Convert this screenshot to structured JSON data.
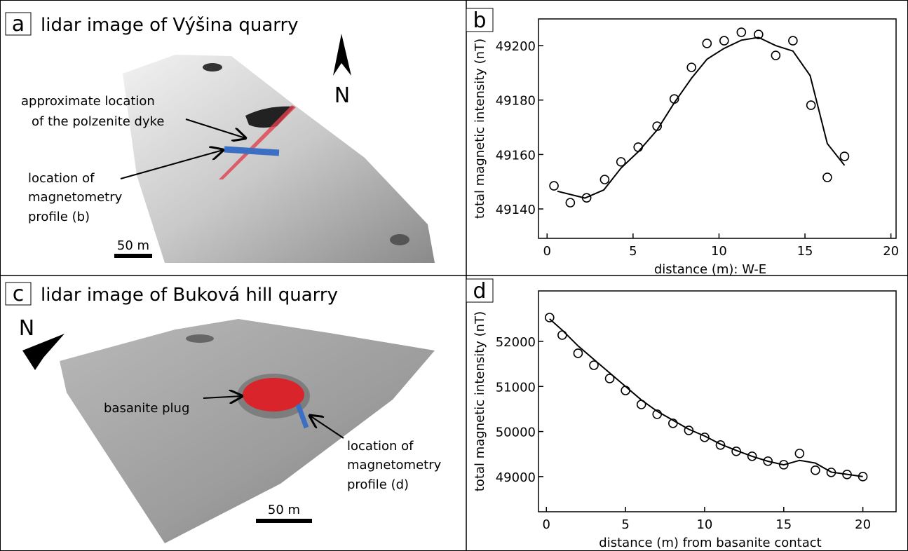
{
  "panels": [
    {
      "label": "a",
      "title": "lidar image of Výšina quarry",
      "north": "N",
      "scale": "50 m",
      "annotations": [
        [
          "approximate location",
          "of the polzenite dyke"
        ],
        [
          "location of",
          "magnetometry",
          "profile (b)"
        ]
      ]
    },
    {
      "label": "c",
      "title": "lidar image of Buková hill quarry",
      "north": "N",
      "scale": "50 m",
      "annotations": [
        [
          "basanite plug"
        ],
        [
          "location of",
          "magnetometry",
          "profile (d)"
        ]
      ]
    }
  ],
  "chart_data": [
    {
      "type": "scatter",
      "label": "b",
      "x_label": "distance (m): W-E",
      "y_label": "total magnetic intensity (nT)",
      "xlim": [
        -0.5,
        20.3
      ],
      "ylim": [
        49129.2,
        49209.8
      ],
      "xticks": [
        0,
        5,
        10,
        15,
        20
      ],
      "yticks": [
        49140,
        49160,
        49180,
        49200
      ],
      "series": [
        {
          "mode": "markers",
          "color": "#000000",
          "x": [
            0.4,
            1.35,
            2.3,
            3.35,
            4.3,
            5.3,
            6.4,
            7.4,
            8.4,
            9.3,
            10.3,
            11.3,
            12.3,
            13.3,
            14.3,
            15.35,
            16.3,
            17.3
          ],
          "values": [
            49148.5,
            49142.3,
            49144.1,
            49150.8,
            49157.3,
            49162.7,
            49170.4,
            49180.4,
            49192,
            49200.8,
            49201.8,
            49204.9,
            49204.1,
            49196.4,
            49201.8,
            49178.1,
            49151.6,
            49159.3
          ]
        },
        {
          "mode": "line",
          "color": "#000000",
          "x": [
            0.6,
            2.2,
            3.3,
            4.3,
            5.3,
            6.4,
            7.4,
            8.4,
            9.3,
            10.3,
            11.3,
            12.3,
            13.3,
            14.3,
            15.3,
            16.3,
            17.3
          ],
          "values": [
            49146.5,
            49144,
            49147,
            49155,
            49161,
            49169,
            49179,
            49188,
            49195,
            49199,
            49202,
            49203,
            49200,
            49198,
            49189,
            49164,
            49156
          ]
        }
      ]
    },
    {
      "type": "scatter",
      "label": "d",
      "x_label": "distance (m) from basanite contact",
      "y_label": "total magnetic intensity (nT)",
      "xlim": [
        -0.5,
        22.1
      ],
      "ylim": [
        48220,
        53120
      ],
      "xticks": [
        0,
        5,
        10,
        15,
        20
      ],
      "yticks": [
        49000,
        50000,
        51000,
        52000
      ],
      "series": [
        {
          "mode": "markers",
          "color": "#000000",
          "x": [
            0.2,
            1,
            2,
            3,
            4,
            5,
            6,
            7,
            8,
            9,
            10,
            11,
            12,
            13,
            14,
            15,
            16,
            17,
            18,
            19,
            20
          ],
          "values": [
            52529,
            52140,
            51736,
            51471,
            51176,
            50911,
            50600,
            50384,
            50182,
            50026,
            49871,
            49700,
            49560,
            49451,
            49342,
            49264,
            49513,
            49140,
            49093,
            49047,
            49000
          ]
        },
        {
          "mode": "line",
          "color": "#000000",
          "x": [
            0.2,
            1,
            2,
            3,
            4,
            5,
            6,
            7,
            8,
            9,
            10,
            11,
            12,
            13,
            14,
            15,
            16,
            17,
            18,
            19,
            20
          ],
          "values": [
            52500,
            52250,
            51900,
            51600,
            51300,
            51000,
            50700,
            50450,
            50250,
            50050,
            49900,
            49720,
            49580,
            49450,
            49340,
            49260,
            49360,
            49300,
            49100,
            49050,
            49000
          ]
        }
      ]
    }
  ]
}
